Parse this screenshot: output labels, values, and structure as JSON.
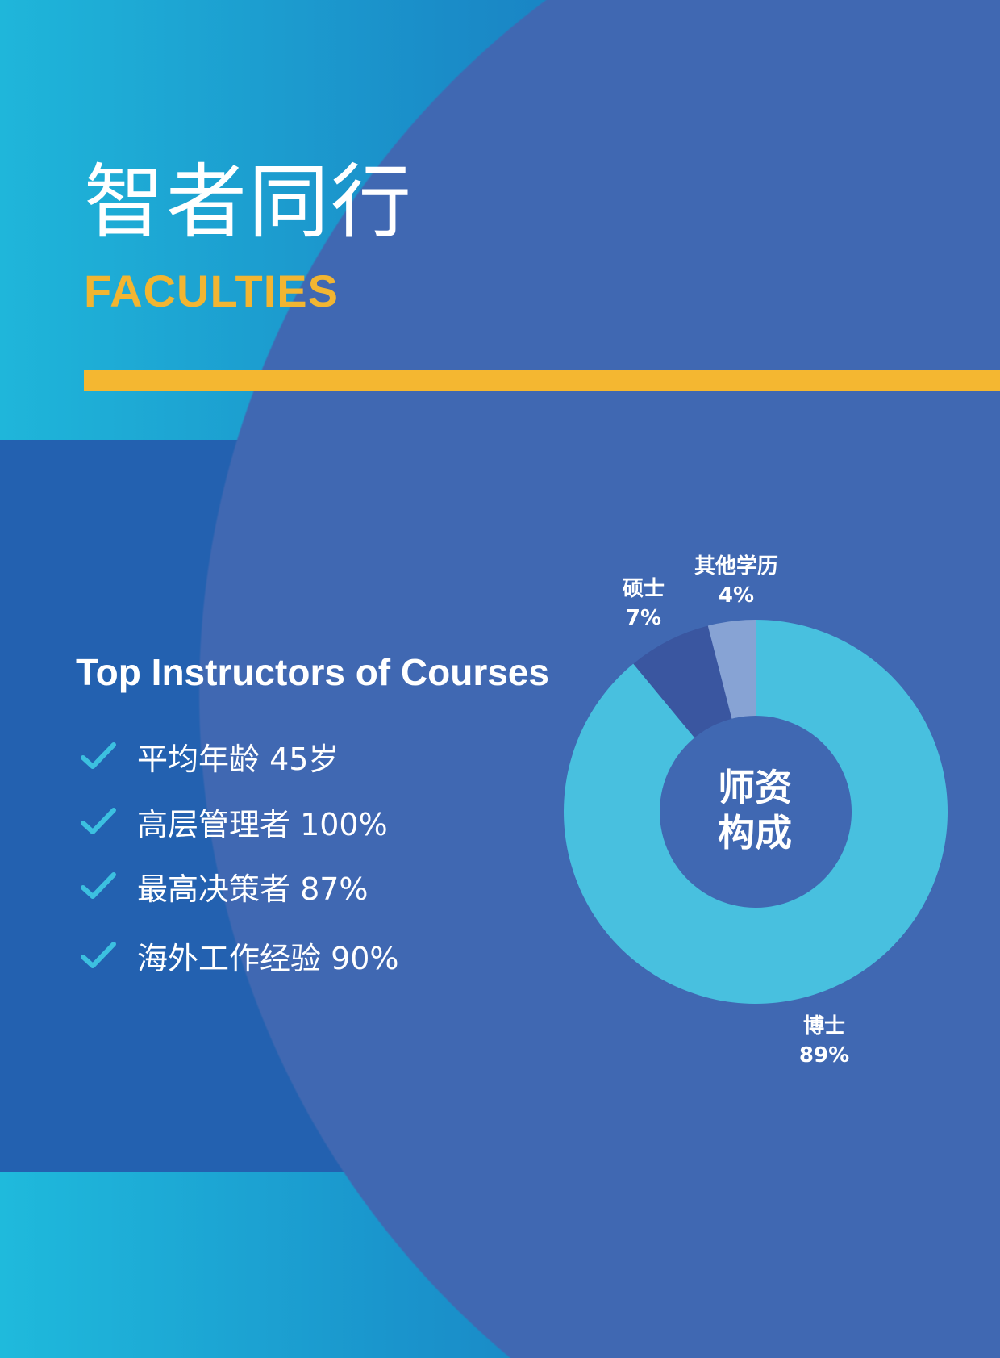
{
  "header": {
    "title": "智者同行",
    "subtitle": "FACULTIES"
  },
  "colors": {
    "accent": "#f4b731",
    "background_circle": "#4068b2",
    "check": "#3cc0e0"
  },
  "highlights": {
    "heading": "Top Instructors of Courses",
    "icon": "check-icon",
    "items": [
      {
        "text": "平均年龄 45岁"
      },
      {
        "text": "高层管理者 100%"
      },
      {
        "text": "最高决策者 87%"
      },
      {
        "text": "海外工作经验 90%"
      }
    ]
  },
  "chart_data": {
    "type": "pie",
    "variant": "donut",
    "title": "师资构成",
    "title_lines": [
      "师资",
      "构成"
    ],
    "slices": [
      {
        "label": "博士",
        "value": 89,
        "display": "89%",
        "color": "#48c0df"
      },
      {
        "label": "硕士",
        "value": 7,
        "display": "7%",
        "color": "#3a56a0"
      },
      {
        "label": "其他学历",
        "value": 4,
        "display": "4%",
        "color": "#87a3d4"
      }
    ]
  }
}
